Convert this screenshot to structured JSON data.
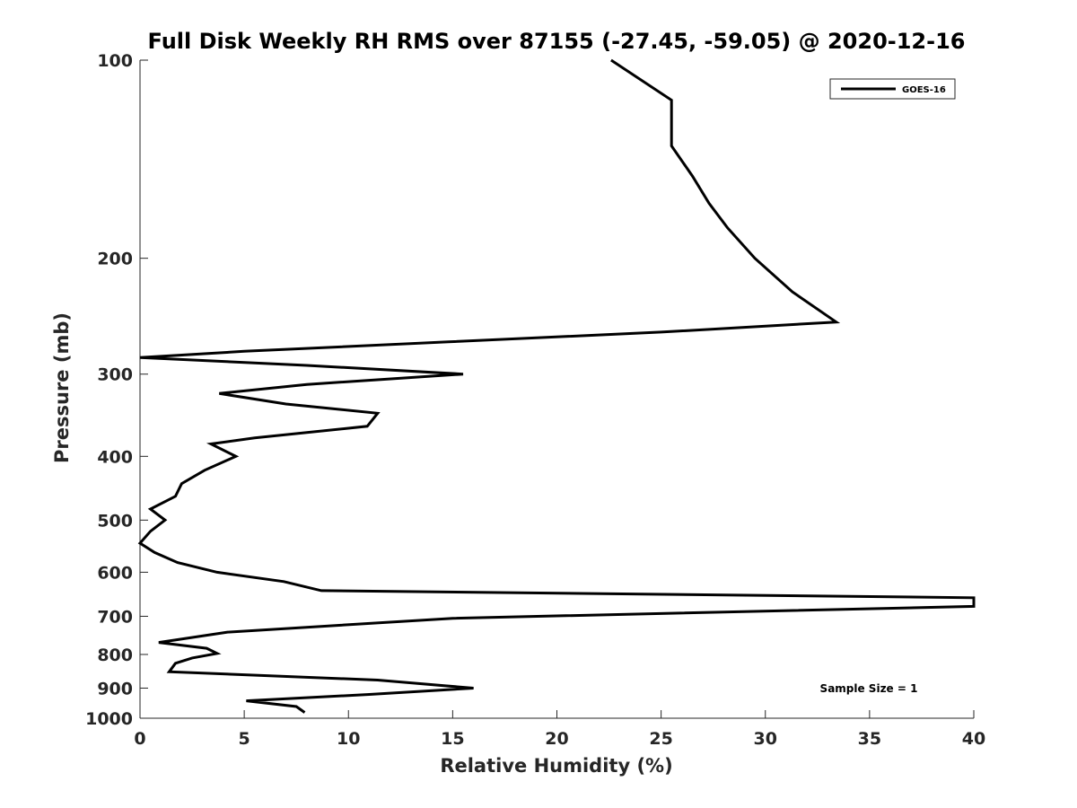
{
  "chart_data": {
    "type": "line",
    "title": "Full Disk Weekly RH RMS over 87155 (-27.45, -59.05) @ 2020-12-16",
    "xlabel": "Relative Humidity (%)",
    "ylabel": "Pressure (mb)",
    "xlim": [
      0,
      40
    ],
    "ylim": [
      1000,
      100
    ],
    "y_scale": "log",
    "y_reversed": true,
    "grid": false,
    "legend_position": "top-right",
    "x_ticks": [
      "0",
      "5",
      "10",
      "15",
      "20",
      "25",
      "30",
      "35",
      "40"
    ],
    "y_ticks": [
      "100",
      "200",
      "300",
      "400",
      "500",
      "600",
      "700",
      "800",
      "900",
      "1000"
    ],
    "annotation": "Sample Size = 1",
    "series": [
      {
        "name": "GOES-16",
        "color": "#000000",
        "points": [
          [
            22.6,
            100
          ],
          [
            25.5,
            115
          ],
          [
            25.5,
            135
          ],
          [
            26.5,
            150
          ],
          [
            27.3,
            165
          ],
          [
            28.2,
            180
          ],
          [
            29.5,
            200
          ],
          [
            31.3,
            225
          ],
          [
            33.4,
            250
          ],
          [
            25,
            259
          ],
          [
            14.8,
            268
          ],
          [
            5,
            277
          ],
          [
            0,
            283
          ],
          [
            8,
            291
          ],
          [
            15.5,
            300
          ],
          [
            8,
            311
          ],
          [
            3.8,
            321
          ],
          [
            7,
            333
          ],
          [
            11.4,
            344
          ],
          [
            10.9,
            360
          ],
          [
            5.5,
            375
          ],
          [
            3.4,
            383
          ],
          [
            4.6,
            400
          ],
          [
            3.1,
            420
          ],
          [
            2,
            440
          ],
          [
            1.7,
            460
          ],
          [
            0.5,
            481
          ],
          [
            1.2,
            500
          ],
          [
            0.5,
            520
          ],
          [
            0,
            542
          ],
          [
            0.7,
            560
          ],
          [
            1.8,
            580
          ],
          [
            3.7,
            600
          ],
          [
            6.9,
            620
          ],
          [
            8.7,
            640
          ],
          [
            40,
            656
          ],
          [
            40,
            676
          ],
          [
            15,
            705
          ],
          [
            4.2,
            740
          ],
          [
            0.9,
            767
          ],
          [
            3.2,
            783
          ],
          [
            3.7,
            797
          ],
          [
            2.5,
            810
          ],
          [
            1.7,
            825
          ],
          [
            1.4,
            850
          ],
          [
            11.4,
            875
          ],
          [
            16,
            900
          ],
          [
            11,
            920
          ],
          [
            5.1,
            941
          ],
          [
            7.5,
            960
          ],
          [
            7.9,
            980
          ]
        ]
      }
    ]
  }
}
